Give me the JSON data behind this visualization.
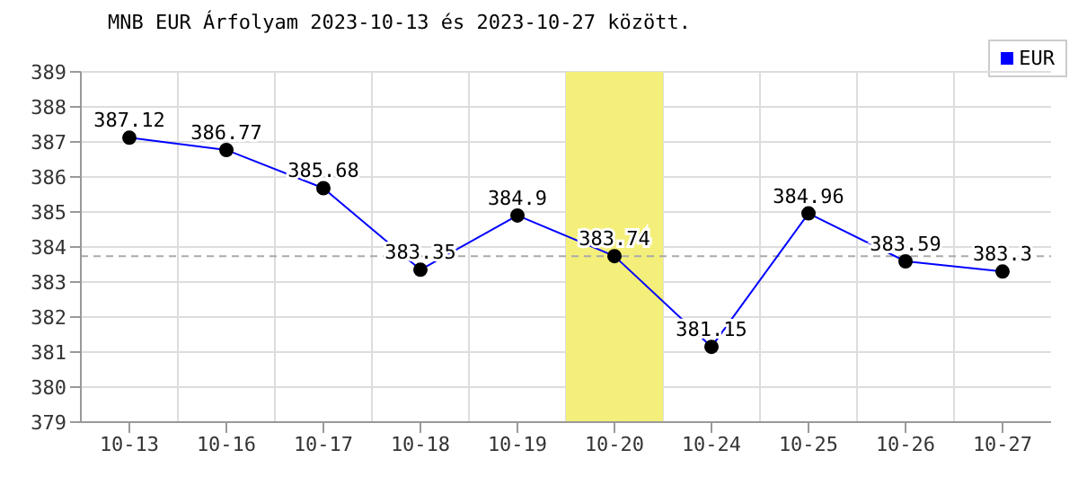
{
  "chart_data": {
    "type": "line",
    "title": "MNB EUR Árfolyam 2023-10-13 és 2023-10-27 között.",
    "categories": [
      "10-13",
      "10-16",
      "10-17",
      "10-18",
      "10-19",
      "10-20",
      "10-24",
      "10-25",
      "10-26",
      "10-27"
    ],
    "series": [
      {
        "name": "EUR",
        "color": "#0000ff",
        "values": [
          387.12,
          386.77,
          385.68,
          383.35,
          384.9,
          383.74,
          381.15,
          384.96,
          383.59,
          383.3
        ]
      }
    ],
    "ylim": [
      379,
      389
    ],
    "yticks": [
      379,
      380,
      381,
      382,
      383,
      384,
      385,
      386,
      387,
      388,
      389
    ],
    "grid": true,
    "legend": "top right",
    "marker": "circle",
    "line_style": "solid",
    "data_labels": true,
    "ref_lines": [
      {
        "axis": "y",
        "value": 383.74,
        "color": "#aaaaaa",
        "line_style": "dashed"
      }
    ],
    "bands": [
      {
        "axis": "x",
        "from": "10-20",
        "to": "10-20",
        "color": "#f3ef7a"
      }
    ]
  }
}
